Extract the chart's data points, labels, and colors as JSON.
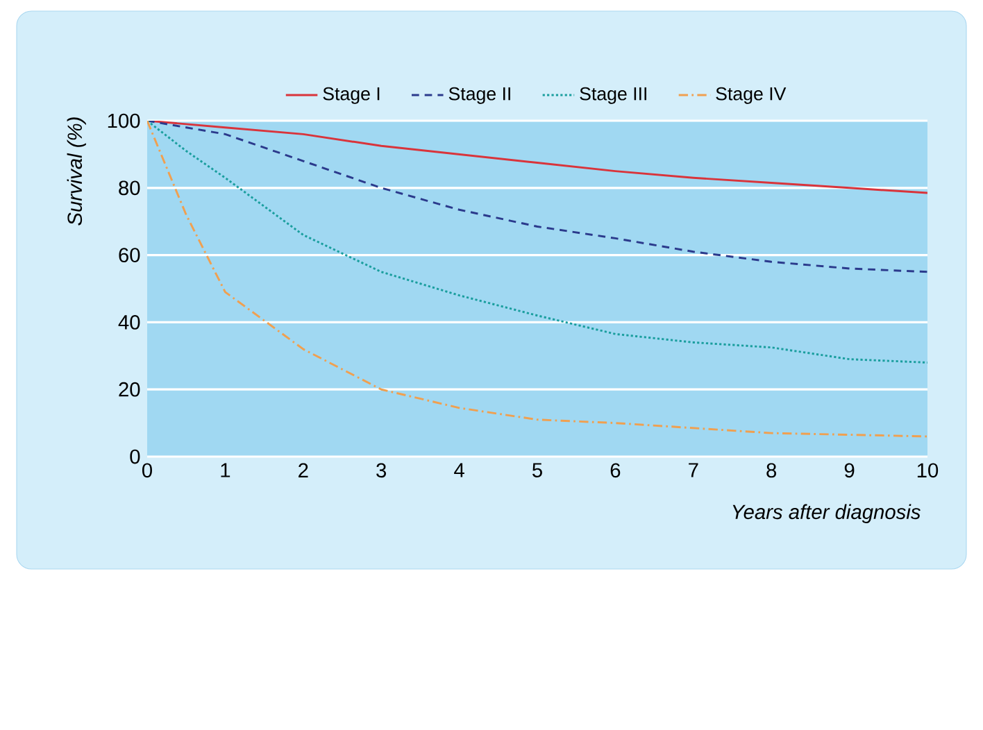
{
  "chart_data": {
    "type": "line",
    "xlabel": "Years after diagnosis",
    "ylabel": "Survival (%)",
    "xlim": [
      0,
      10
    ],
    "ylim": [
      0,
      100
    ],
    "xticks": [
      0,
      1,
      2,
      3,
      4,
      5,
      6,
      7,
      8,
      9,
      10
    ],
    "yticks": [
      0,
      20,
      40,
      60,
      80,
      100
    ],
    "grid": "y",
    "legend": "top",
    "marker": "none",
    "series": [
      {
        "name": "Stage I",
        "color": "#d9343b",
        "line_style": "solid",
        "x": [
          0,
          1,
          2,
          3,
          4,
          5,
          6,
          7,
          8,
          9,
          10
        ],
        "values": [
          100,
          98,
          96,
          92.5,
          90,
          87.5,
          85,
          83,
          81.5,
          80,
          78.5
        ]
      },
      {
        "name": "Stage II",
        "color": "#2b3a8c",
        "line_style": "dashed",
        "x": [
          0,
          1,
          2,
          3,
          4,
          5,
          6,
          7,
          8,
          9,
          10
        ],
        "values": [
          100,
          96,
          88,
          80,
          73.5,
          68.5,
          65,
          61,
          58,
          56,
          55
        ]
      },
      {
        "name": "Stage III",
        "color": "#1a9e9e",
        "line_style": "dotted",
        "x": [
          0,
          0.5,
          1,
          2,
          3,
          4,
          5,
          6,
          7,
          8,
          9,
          10
        ],
        "values": [
          100,
          91,
          83,
          66,
          55,
          48,
          42,
          36.5,
          34,
          32.5,
          29,
          28
        ]
      },
      {
        "name": "Stage IV",
        "color": "#f0a050",
        "line_style": "dashdot",
        "x": [
          0,
          0.5,
          1,
          2,
          3,
          4,
          5,
          6,
          7,
          8,
          9,
          10
        ],
        "values": [
          100,
          72,
          49,
          32,
          20,
          14.5,
          11,
          10,
          8.5,
          7,
          6.5,
          6
        ]
      }
    ]
  }
}
